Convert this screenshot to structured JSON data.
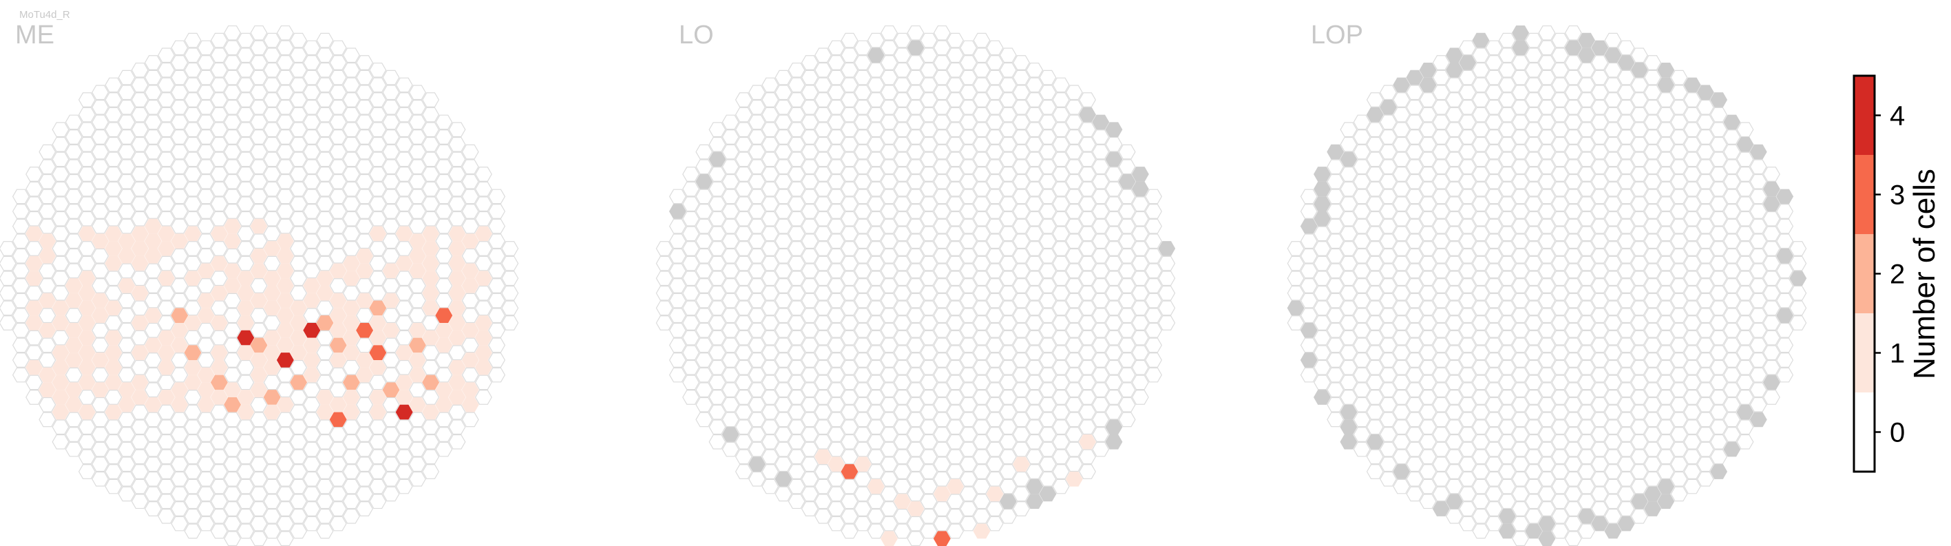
{
  "cell_type": "MoTu4d_R",
  "chart_data": [
    {
      "type": "heatmap",
      "layout": "hexagonal-column-map",
      "title": "ME",
      "occupied_rows": [
        -4,
        8
      ],
      "dark_cells": [
        [
          -1,
          3,
          4
        ],
        [
          2,
          5,
          4
        ],
        [
          8,
          3,
          3
        ],
        [
          14,
          2,
          3
        ],
        [
          11,
          8,
          4
        ],
        [
          9,
          4,
          3
        ],
        [
          4,
          3,
          4
        ],
        [
          6,
          9,
          3
        ]
      ],
      "medium_cells": [
        [
          -6,
          2,
          2
        ],
        [
          -5,
          4,
          2
        ],
        [
          -3,
          6,
          2
        ],
        [
          0,
          4,
          2
        ],
        [
          3,
          6,
          2
        ],
        [
          5,
          2,
          2
        ],
        [
          7,
          6,
          2
        ],
        [
          10,
          7,
          2
        ],
        [
          12,
          4,
          2
        ],
        [
          13,
          6,
          2
        ],
        [
          -2,
          8,
          2
        ],
        [
          1,
          7,
          2
        ],
        [
          9,
          1,
          2
        ],
        [
          6,
          4,
          2
        ]
      ],
      "light_probability": 0.55
    },
    {
      "type": "heatmap",
      "layout": "hexagonal-column-map",
      "title": "LO",
      "light_cells": [
        [
          -7,
          11
        ],
        [
          -6,
          12
        ],
        [
          -4,
          12
        ],
        [
          -3,
          13
        ],
        [
          -1,
          14
        ],
        [
          0,
          15
        ],
        [
          2,
          14
        ],
        [
          3,
          13
        ],
        [
          5,
          16
        ],
        [
          6,
          14
        ],
        [
          8,
          12
        ],
        [
          -2,
          17
        ],
        [
          1,
          18
        ],
        [
          4,
          18
        ],
        [
          7,
          16
        ],
        [
          9,
          15
        ],
        [
          10,
          18
        ],
        [
          12,
          13
        ],
        [
          -5,
          18
        ],
        [
          13,
          10
        ],
        [
          11,
          16
        ],
        [
          -1,
          20
        ]
      ],
      "medium_cells": [
        [
          -5,
          12,
          3
        ],
        [
          2,
          17,
          3
        ]
      ],
      "missing_columns": 22
    },
    {
      "type": "heatmap",
      "layout": "hexagonal-column-map",
      "title": "LOP",
      "missing_columns": 70
    }
  ],
  "colorbar": {
    "label": "Number of cells",
    "ticks": [
      "0",
      "1",
      "2",
      "3",
      "4"
    ],
    "colors": [
      "#ffffff",
      "#fde6dc",
      "#fcb497",
      "#f6694b",
      "#d42a24"
    ]
  },
  "colors": {
    "grid_outline": "#dcdcdc",
    "missing": "#cccccc",
    "count_1": "#fde6dc",
    "count_2": "#fcb497",
    "count_3": "#f6694b",
    "count_4": "#d42a24"
  }
}
